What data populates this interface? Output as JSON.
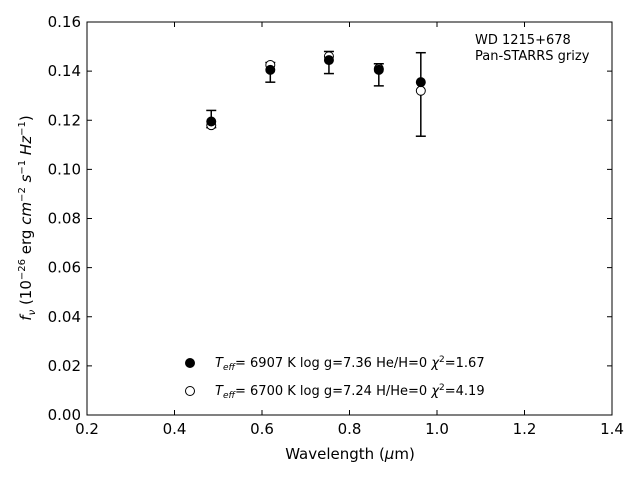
{
  "chart_data": {
    "type": "scatter",
    "xlabel": {
      "main": "Wavelength (",
      "mu": "μ",
      "unit": "m)"
    },
    "ylabel": {
      "prefix": "f",
      "sub": "ν",
      "open": " (10",
      "exp": "−26",
      "erg": " erg ",
      "cm": "cm",
      "cm_exp": "−2",
      "s": " s",
      "s_exp": "−1",
      "hz": " Hz",
      "hz_exp": "−1",
      "close": ")"
    },
    "xlim": [
      0.2,
      1.4
    ],
    "ylim": [
      0.0,
      0.16
    ],
    "xticks": [
      0.2,
      0.4,
      0.6,
      0.8,
      1.0,
      1.2,
      1.4
    ],
    "xtick_labels": [
      "0.2",
      "0.4",
      "0.6",
      "0.8",
      "1.0",
      "1.2",
      "1.4"
    ],
    "yticks": [
      0.0,
      0.02,
      0.04,
      0.06,
      0.08,
      0.1,
      0.12,
      0.14,
      0.16
    ],
    "ytick_labels": [
      "0.00",
      "0.02",
      "0.04",
      "0.06",
      "0.08",
      "0.10",
      "0.12",
      "0.14",
      "0.16"
    ],
    "grid": false,
    "annotation": [
      "WD 1215+678",
      "Pan-STARRS grizy"
    ],
    "observed": {
      "x": [
        0.484,
        0.619,
        0.753,
        0.867,
        0.963
      ],
      "y": [
        0.1205,
        0.1395,
        0.1435,
        0.1385,
        0.1305
      ],
      "yerr": [
        0.0035,
        0.004,
        0.0045,
        0.0045,
        0.017
      ]
    },
    "series": [
      {
        "marker": "filled-circle",
        "x": [
          0.484,
          0.619,
          0.753,
          0.867,
          0.963
        ],
        "y": [
          0.1195,
          0.1405,
          0.1445,
          0.1405,
          0.1355
        ],
        "legend": {
          "t": "T",
          "eff": "eff",
          "teff": "=  6907 K",
          "logg": "  log g=7.36",
          "comp": "  He/H=0",
          "chi": "χ",
          "chi_exp": "2",
          "chi_val": "=1.67"
        }
      },
      {
        "marker": "open-circle",
        "x": [
          0.484,
          0.619,
          0.753,
          0.867,
          0.963
        ],
        "y": [
          0.118,
          0.1425,
          0.146,
          0.141,
          0.132
        ],
        "legend": {
          "t": "T",
          "eff": "eff",
          "teff": "=  6700 K",
          "logg": "  log g=7.24",
          "comp": "  H/He=0",
          "chi": "χ",
          "chi_exp": "2",
          "chi_val": "=4.19"
        }
      }
    ],
    "legend_position": "bottom-center"
  }
}
